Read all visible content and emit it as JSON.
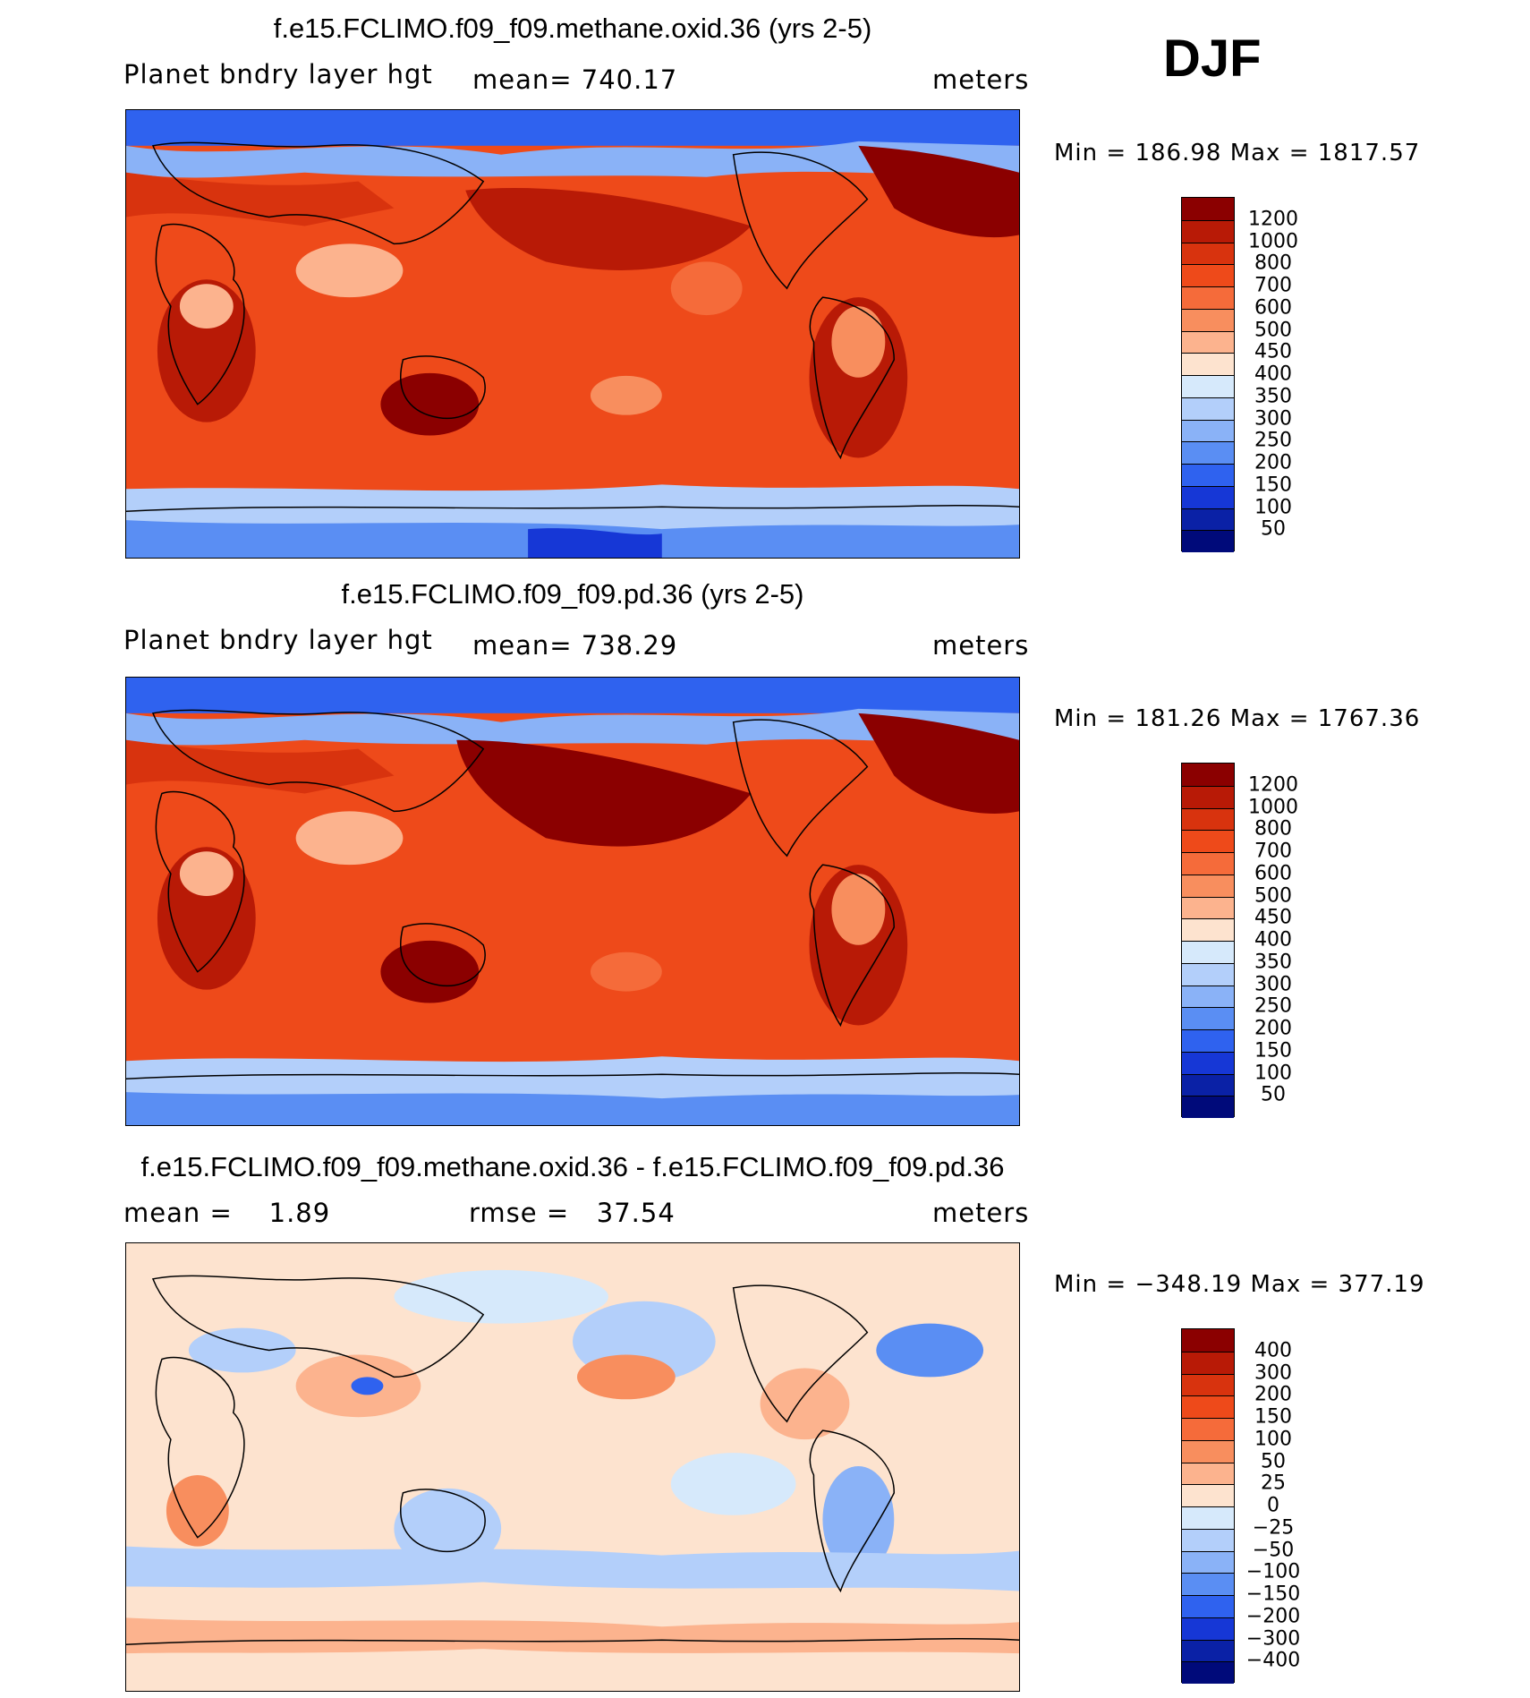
{
  "season": "DJF",
  "panels": [
    {
      "title": "f.e15.FCLIMO.f09_f09.methane.oxid.36 (yrs 2-5)",
      "sub_left": "Planet bndry layer hgt",
      "sub_mid": "mean= 740.17",
      "sub_right": "meters",
      "minmax": "Min = 186.98 Max = 1817.57",
      "kind": "abs"
    },
    {
      "title": "f.e15.FCLIMO.f09_f09.pd.36 (yrs 2-5)",
      "sub_left": "Planet bndry layer hgt",
      "sub_mid": "mean= 738.29",
      "sub_right": "meters",
      "minmax": "Min = 181.26 Max = 1767.36",
      "kind": "abs"
    },
    {
      "title": "f.e15.FCLIMO.f09_f09.methane.oxid.36 - f.e15.FCLIMO.f09_f09.pd.36",
      "sub_left": "mean =    1.89",
      "sub_mid": "rmse =   37.54",
      "sub_right": "meters",
      "minmax": "Min = −348.19 Max = 377.19",
      "kind": "diff"
    }
  ],
  "colorbars": {
    "abs": {
      "labels": [
        "1200",
        "1000",
        "800",
        "700",
        "600",
        "500",
        "450",
        "400",
        "350",
        "300",
        "250",
        "200",
        "150",
        "100",
        "50"
      ],
      "colors": [
        "#8b0000",
        "#b81a06",
        "#d8330e",
        "#ee4a1a",
        "#f56b3a",
        "#f88e5e",
        "#fcb38e",
        "#fde3cf",
        "#d6e9fb",
        "#b3cffa",
        "#8ab2f7",
        "#5a8ef3",
        "#2f62ef",
        "#1637d6",
        "#0a21a6",
        "#000a7a"
      ]
    },
    "diff": {
      "labels": [
        "400",
        "300",
        "200",
        "150",
        "100",
        "50",
        "25",
        "0",
        "−25",
        "−50",
        "−100",
        "−150",
        "−200",
        "−300",
        "−400"
      ],
      "colors": [
        "#8b0000",
        "#b81a06",
        "#d8330e",
        "#ee4a1a",
        "#f56b3a",
        "#f88e5e",
        "#fcb38e",
        "#fde3cf",
        "#d6e9fb",
        "#b3cffa",
        "#8ab2f7",
        "#5a8ef3",
        "#2f62ef",
        "#1637d6",
        "#0a21a6",
        "#000a7a"
      ]
    }
  }
}
